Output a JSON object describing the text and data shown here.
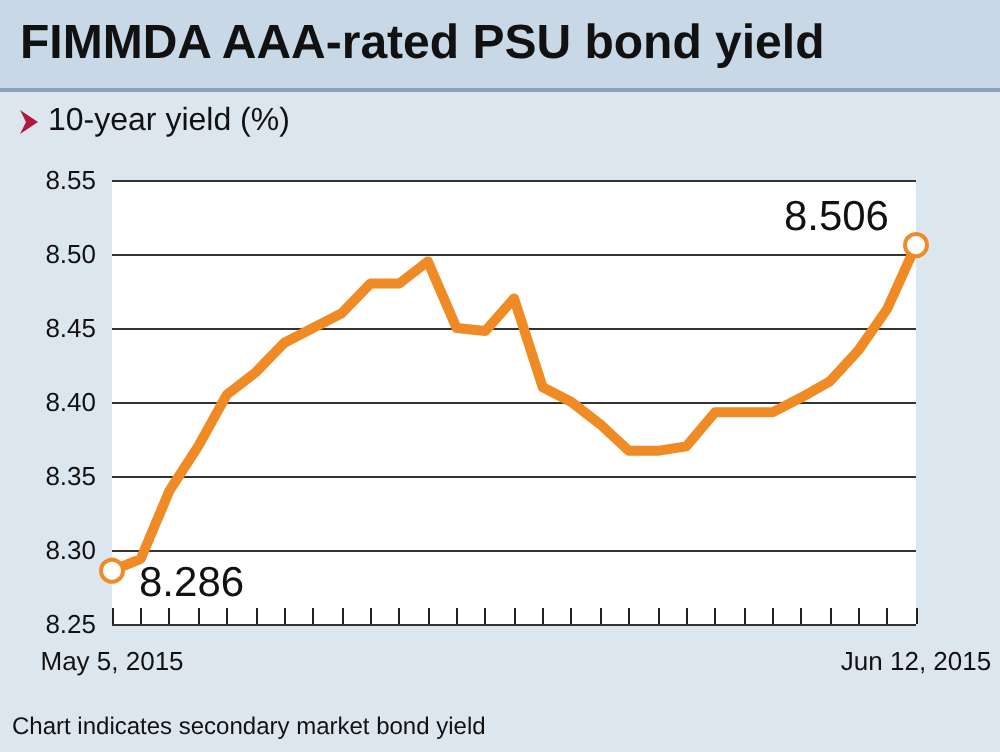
{
  "chart_data": {
    "type": "line",
    "title": "FIMMDA AAA-rated PSU bond yield",
    "subtitle": "10-year yield (%)",
    "categories": [
      "May 5, 2015",
      null,
      null,
      null,
      null,
      null,
      null,
      null,
      null,
      null,
      null,
      null,
      null,
      null,
      null,
      null,
      null,
      null,
      null,
      null,
      null,
      null,
      null,
      null,
      null,
      null,
      null,
      null,
      "Jun 12, 2015"
    ],
    "series": [
      {
        "color": "#f08a24",
        "values": [
          8.286,
          8.294,
          8.34,
          8.37,
          8.405,
          8.42,
          8.44,
          8.45,
          8.46,
          8.48,
          8.48,
          8.495,
          8.45,
          8.448,
          8.47,
          8.41,
          8.4,
          8.385,
          8.367,
          8.367,
          8.37,
          8.393,
          8.393,
          8.393,
          8.403,
          8.414,
          8.435,
          8.463,
          8.506
        ],
        "value_labels": [
          "8.286",
          null,
          null,
          null,
          null,
          null,
          null,
          null,
          null,
          null,
          null,
          null,
          null,
          null,
          null,
          null,
          null,
          null,
          null,
          null,
          null,
          null,
          null,
          null,
          null,
          null,
          null,
          null,
          "8.506"
        ]
      }
    ],
    "ylim": [
      8.25,
      8.55
    ],
    "yticks": [
      {
        "value": 8.25,
        "label": "8.25"
      },
      {
        "value": 8.3,
        "label": "8.30"
      },
      {
        "value": 8.35,
        "label": "8.35"
      },
      {
        "value": 8.4,
        "label": "8.40"
      },
      {
        "value": 8.45,
        "label": "8.45"
      },
      {
        "value": 8.5,
        "label": "8.50"
      },
      {
        "value": 8.55,
        "label": "8.55"
      }
    ],
    "grid": "y",
    "annotations": [
      "Chart indicates secondary market bond yield"
    ]
  }
}
